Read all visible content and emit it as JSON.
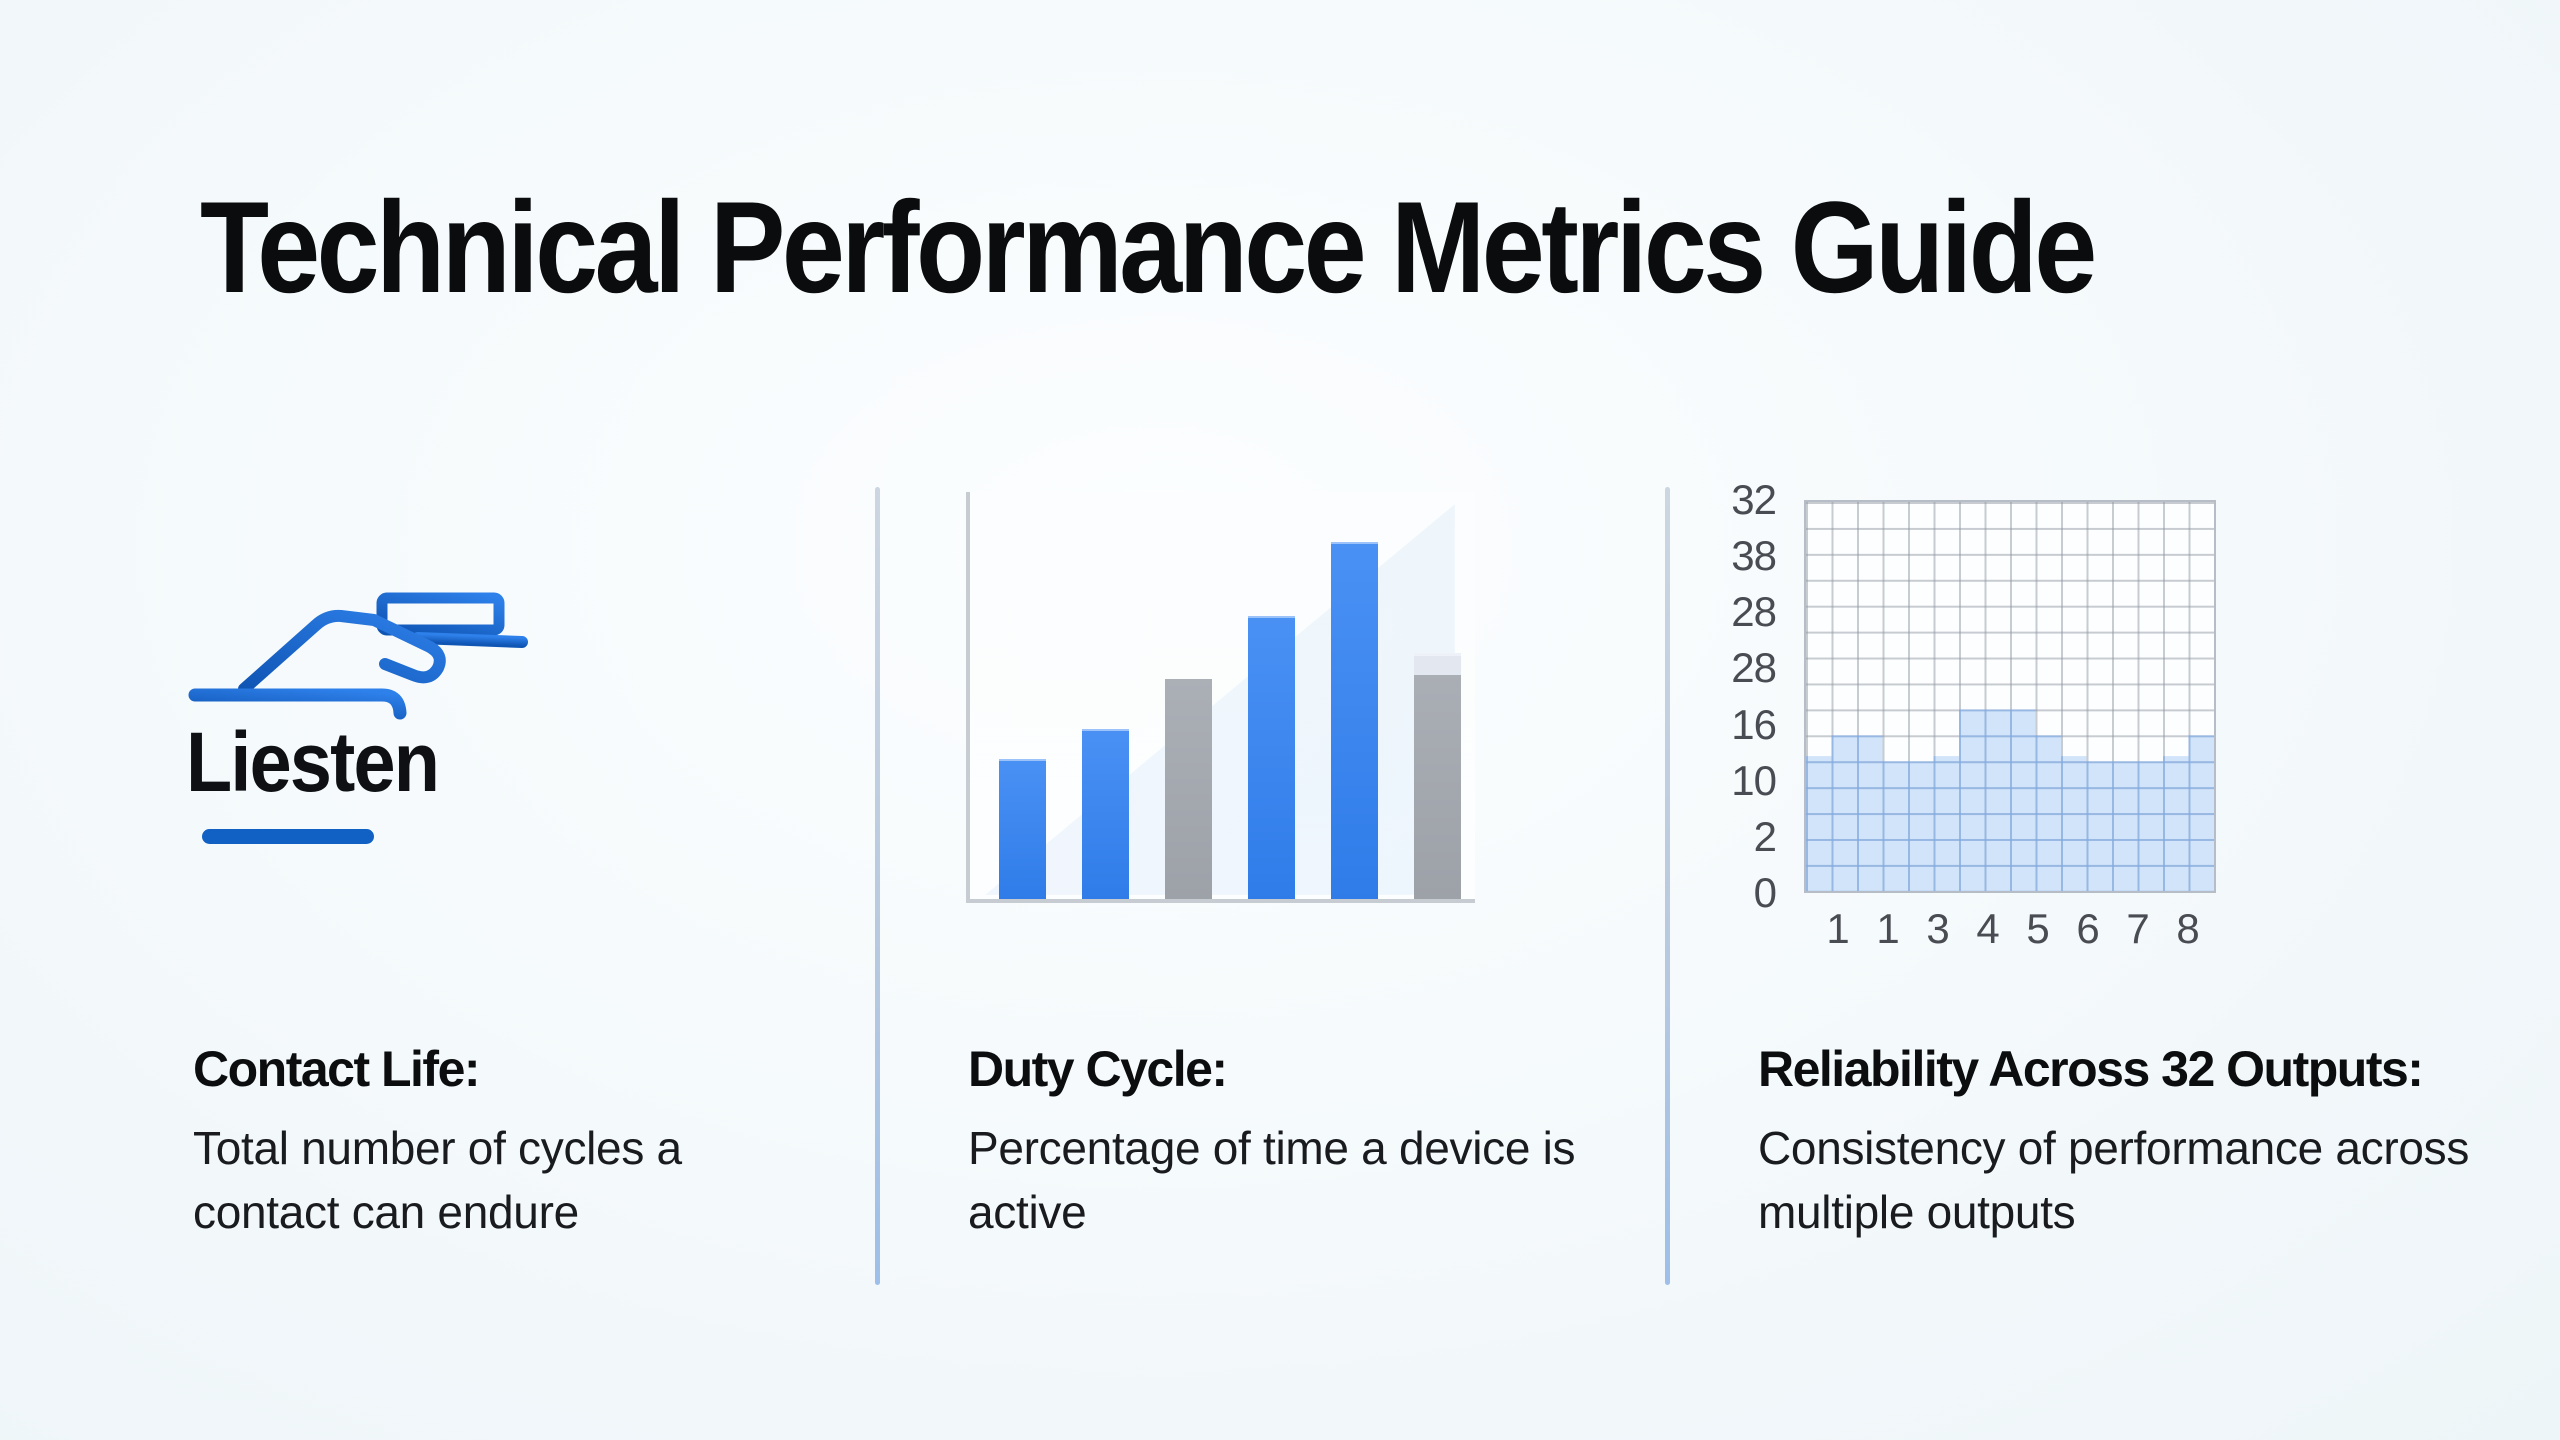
{
  "title": "Technical Performance Metrics Guide",
  "columns": [
    {
      "id": "contact-life",
      "icon": "hand-pressing-contact-icon",
      "logo_text": "Liesten",
      "heading": "Contact Life:",
      "description": "Total number of cycles a contact can endure"
    },
    {
      "id": "duty-cycle",
      "icon": "bar-chart-illustration",
      "heading": "Duty Cycle:",
      "description": "Percentage of time a device is active"
    },
    {
      "id": "reliability",
      "icon": "grid-area-chart-illustration",
      "heading": "Reliability Across 32 Outputs:",
      "description": "Consistency of performance across multiple outputs"
    }
  ],
  "chart_data": [
    {
      "type": "bar",
      "panel": "duty-cycle",
      "title": "",
      "xlabel": "",
      "ylabel": "",
      "axis_labels_visible": false,
      "values_unit": "percent_of_chart_height",
      "bars": [
        {
          "height_pct": 34.4,
          "color": "blue"
        },
        {
          "height_pct": 41.8,
          "color": "blue"
        },
        {
          "height_pct": 54.1,
          "color": "gray"
        },
        {
          "height_pct": 69.5,
          "color": "blue"
        },
        {
          "height_pct": 87.7,
          "color": "blue"
        },
        {
          "height_pct": 55.0,
          "color": "gray",
          "cap_pct": 5.4,
          "cap_color": "lightgray"
        }
      ],
      "legend": null,
      "grid": false
    },
    {
      "type": "area",
      "panel": "reliability",
      "title": "",
      "xlabel": "",
      "ylabel": "",
      "grid": {
        "cols": 16,
        "rows": 15,
        "style": "graph-paper"
      },
      "y_tick_labels": [
        "32",
        "38",
        "28",
        "28",
        "16",
        "10",
        "2",
        "0"
      ],
      "x_tick_labels": [
        "1",
        "1",
        "3",
        "4",
        "5",
        "6",
        "7",
        "8"
      ],
      "column_heights_cells": [
        5.2,
        6,
        6,
        5,
        5,
        5.2,
        7,
        7,
        7,
        6,
        5.2,
        5,
        5,
        5,
        5.2,
        6
      ],
      "fill_style": "stepped light-blue area on graph-paper grid"
    }
  ],
  "colors": {
    "background": "#f3f8fa",
    "title_text": "#0b0c0e",
    "body_text": "#191b1e",
    "bar_blue": "#3583f0",
    "bar_gray": "#a5a9b0",
    "bar_cap": "#e3e7f0",
    "icon_blue": "#1565c8",
    "logo_underline": "#1161c4",
    "divider": "#a9c3e4",
    "axis_gray": "#c7ccd2",
    "tick_label_gray": "#494d53",
    "area_fill_blue": "#aecdf3"
  }
}
